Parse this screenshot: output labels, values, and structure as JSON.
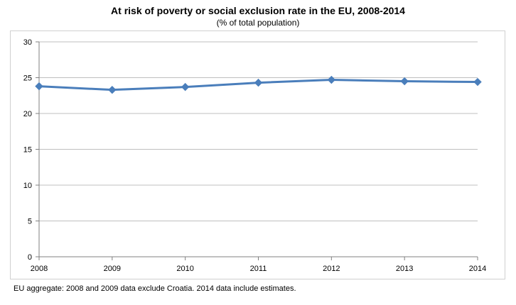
{
  "chart_data": {
    "type": "line",
    "title": "At risk of poverty or social exclusion rate in the EU, 2008-2014",
    "subtitle": "(% of total population)",
    "categories": [
      "2008",
      "2009",
      "2010",
      "2011",
      "2012",
      "2013",
      "2014"
    ],
    "series": [
      {
        "values": [
          23.8,
          23.3,
          23.7,
          24.3,
          24.7,
          24.5,
          24.4
        ],
        "color": "#4a7ebb"
      }
    ],
    "ylim": [
      0,
      30
    ],
    "yticks": [
      "0",
      "5",
      "10",
      "15",
      "20",
      "25",
      "30"
    ],
    "grid": true,
    "legend": "none",
    "marker": "diamond",
    "footnote": "EU aggregate: 2008 and 2009 data exclude Croatia. 2014 data include estimates."
  }
}
